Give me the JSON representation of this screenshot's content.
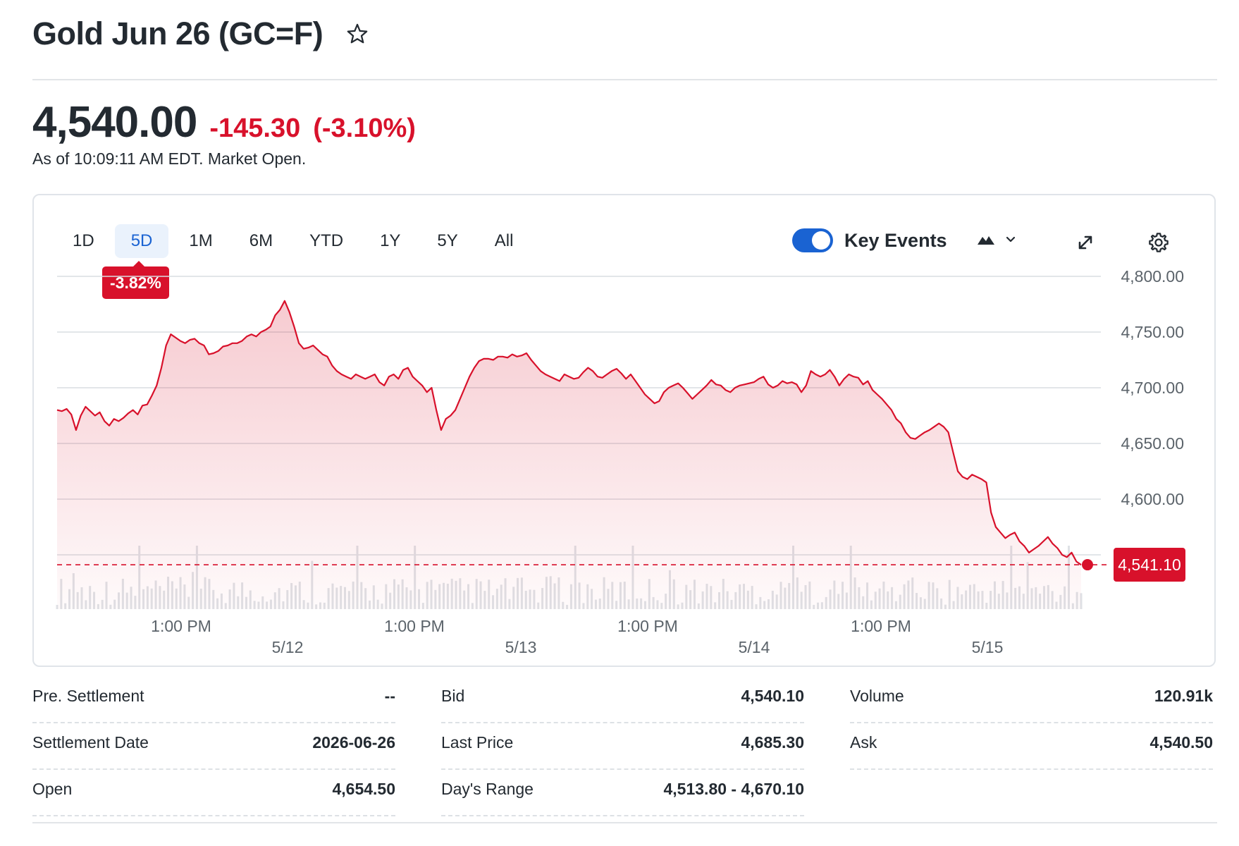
{
  "header": {
    "title": "Gold Jun 26 (GC=F)",
    "price": "4,540.00",
    "change": "-145.30",
    "change_pct": "(-3.10%)",
    "as_of": "As of 10:09:11 AM EDT. Market Open."
  },
  "toolbar": {
    "ranges": [
      {
        "label": "1D",
        "active": false
      },
      {
        "label": "5D",
        "active": true
      },
      {
        "label": "1M",
        "active": false
      },
      {
        "label": "6M",
        "active": false
      },
      {
        "label": "YTD",
        "active": false
      },
      {
        "label": "1Y",
        "active": false
      },
      {
        "label": "5Y",
        "active": false
      },
      {
        "label": "All",
        "active": false
      }
    ],
    "range_change_badge": "-3.82%",
    "key_events_label": "Key Events",
    "key_events_enabled": true,
    "chart_type_icon": "mountain-chart-icon",
    "expand_icon": "expand-icon",
    "settings_icon": "gear-icon"
  },
  "colors": {
    "accent": "#1a63d2",
    "negative": "#d8112b",
    "text": "#232a31"
  },
  "chart_data": {
    "type": "area",
    "title": "",
    "ylim": [
      4500,
      4800
    ],
    "y_ticks": [
      "4,800.00",
      "4,750.00",
      "4,700.00",
      "4,650.00",
      "4,600.00",
      "4,550.00"
    ],
    "x_tick_labels": [
      {
        "time": "1:00 PM",
        "date": "5/12"
      },
      {
        "time": "1:00 PM",
        "date": "5/13"
      },
      {
        "time": "1:00 PM",
        "date": "5/14"
      },
      {
        "time": "1:00 PM",
        "date": "5/15"
      }
    ],
    "current_value_label": "4,541.10",
    "reference_line": 4541.1,
    "grid": true,
    "series": [
      {
        "values": [
          4680,
          4679,
          4681,
          4676,
          4662,
          4675,
          4683,
          4679,
          4675,
          4678,
          4670,
          4666,
          4672,
          4670,
          4673,
          4677,
          4680,
          4676,
          4684,
          4685,
          4693,
          4702,
          4718,
          4738,
          4748,
          4745,
          4742,
          4740,
          4743,
          4744,
          4740,
          4738,
          4730,
          4731,
          4733,
          4737,
          4738,
          4740,
          4740,
          4742,
          4746,
          4748,
          4746,
          4750,
          4752,
          4755,
          4765,
          4770,
          4778,
          4768,
          4755,
          4740,
          4735,
          4736,
          4738,
          4734,
          4730,
          4728,
          4720,
          4715,
          4712,
          4710,
          4708,
          4712,
          4710,
          4708,
          4710,
          4712,
          4705,
          4702,
          4710,
          4712,
          4708,
          4716,
          4718,
          4710,
          4706,
          4702,
          4696,
          4700,
          4680,
          4662,
          4672,
          4675,
          4680,
          4690,
          4700,
          4710,
          4718,
          4724,
          4726,
          4726,
          4725,
          4728,
          4728,
          4727,
          4730,
          4728,
          4729,
          4731,
          4725,
          4720,
          4715,
          4712,
          4710,
          4708,
          4706,
          4712,
          4710,
          4708,
          4709,
          4714,
          4718,
          4715,
          4710,
          4709,
          4712,
          4715,
          4717,
          4713,
          4708,
          4712,
          4706,
          4700,
          4694,
          4690,
          4686,
          4688,
          4696,
          4700,
          4702,
          4704,
          4700,
          4695,
          4690,
          4694,
          4698,
          4702,
          4707,
          4703,
          4702,
          4698,
          4696,
          4700,
          4702,
          4703,
          4704,
          4705,
          4708,
          4710,
          4703,
          4700,
          4702,
          4706,
          4704,
          4705,
          4703,
          4696,
          4702,
          4715,
          4712,
          4710,
          4712,
          4716,
          4710,
          4702,
          4708,
          4712,
          4710,
          4709,
          4703,
          4706,
          4698,
          4694,
          4690,
          4685,
          4680,
          4672,
          4668,
          4660,
          4655,
          4654,
          4657,
          4660,
          4662,
          4665,
          4668,
          4665,
          4660,
          4642,
          4625,
          4620,
          4618,
          4622,
          4620,
          4618,
          4615,
          4588,
          4575,
          4570,
          4565,
          4568,
          4570,
          4562,
          4558,
          4552,
          4555,
          4558,
          4562,
          4566,
          4560,
          4556,
          4550,
          4548,
          4552,
          4544,
          4541
        ]
      }
    ],
    "volume_note": "volume bars shown as light grey histogram beneath price area"
  },
  "stats": {
    "col1": [
      {
        "label": "Pre. Settlement",
        "value": "--"
      },
      {
        "label": "Settlement Date",
        "value": "2026-06-26"
      },
      {
        "label": "Open",
        "value": "4,654.50"
      }
    ],
    "col2": [
      {
        "label": "Bid",
        "value": "4,540.10"
      },
      {
        "label": "Last Price",
        "value": "4,685.30"
      },
      {
        "label": "Day's Range",
        "value": "4,513.80 - 4,670.10"
      }
    ],
    "col3": [
      {
        "label": "Volume",
        "value": "120.91k"
      },
      {
        "label": "Ask",
        "value": "4,540.50"
      }
    ]
  }
}
